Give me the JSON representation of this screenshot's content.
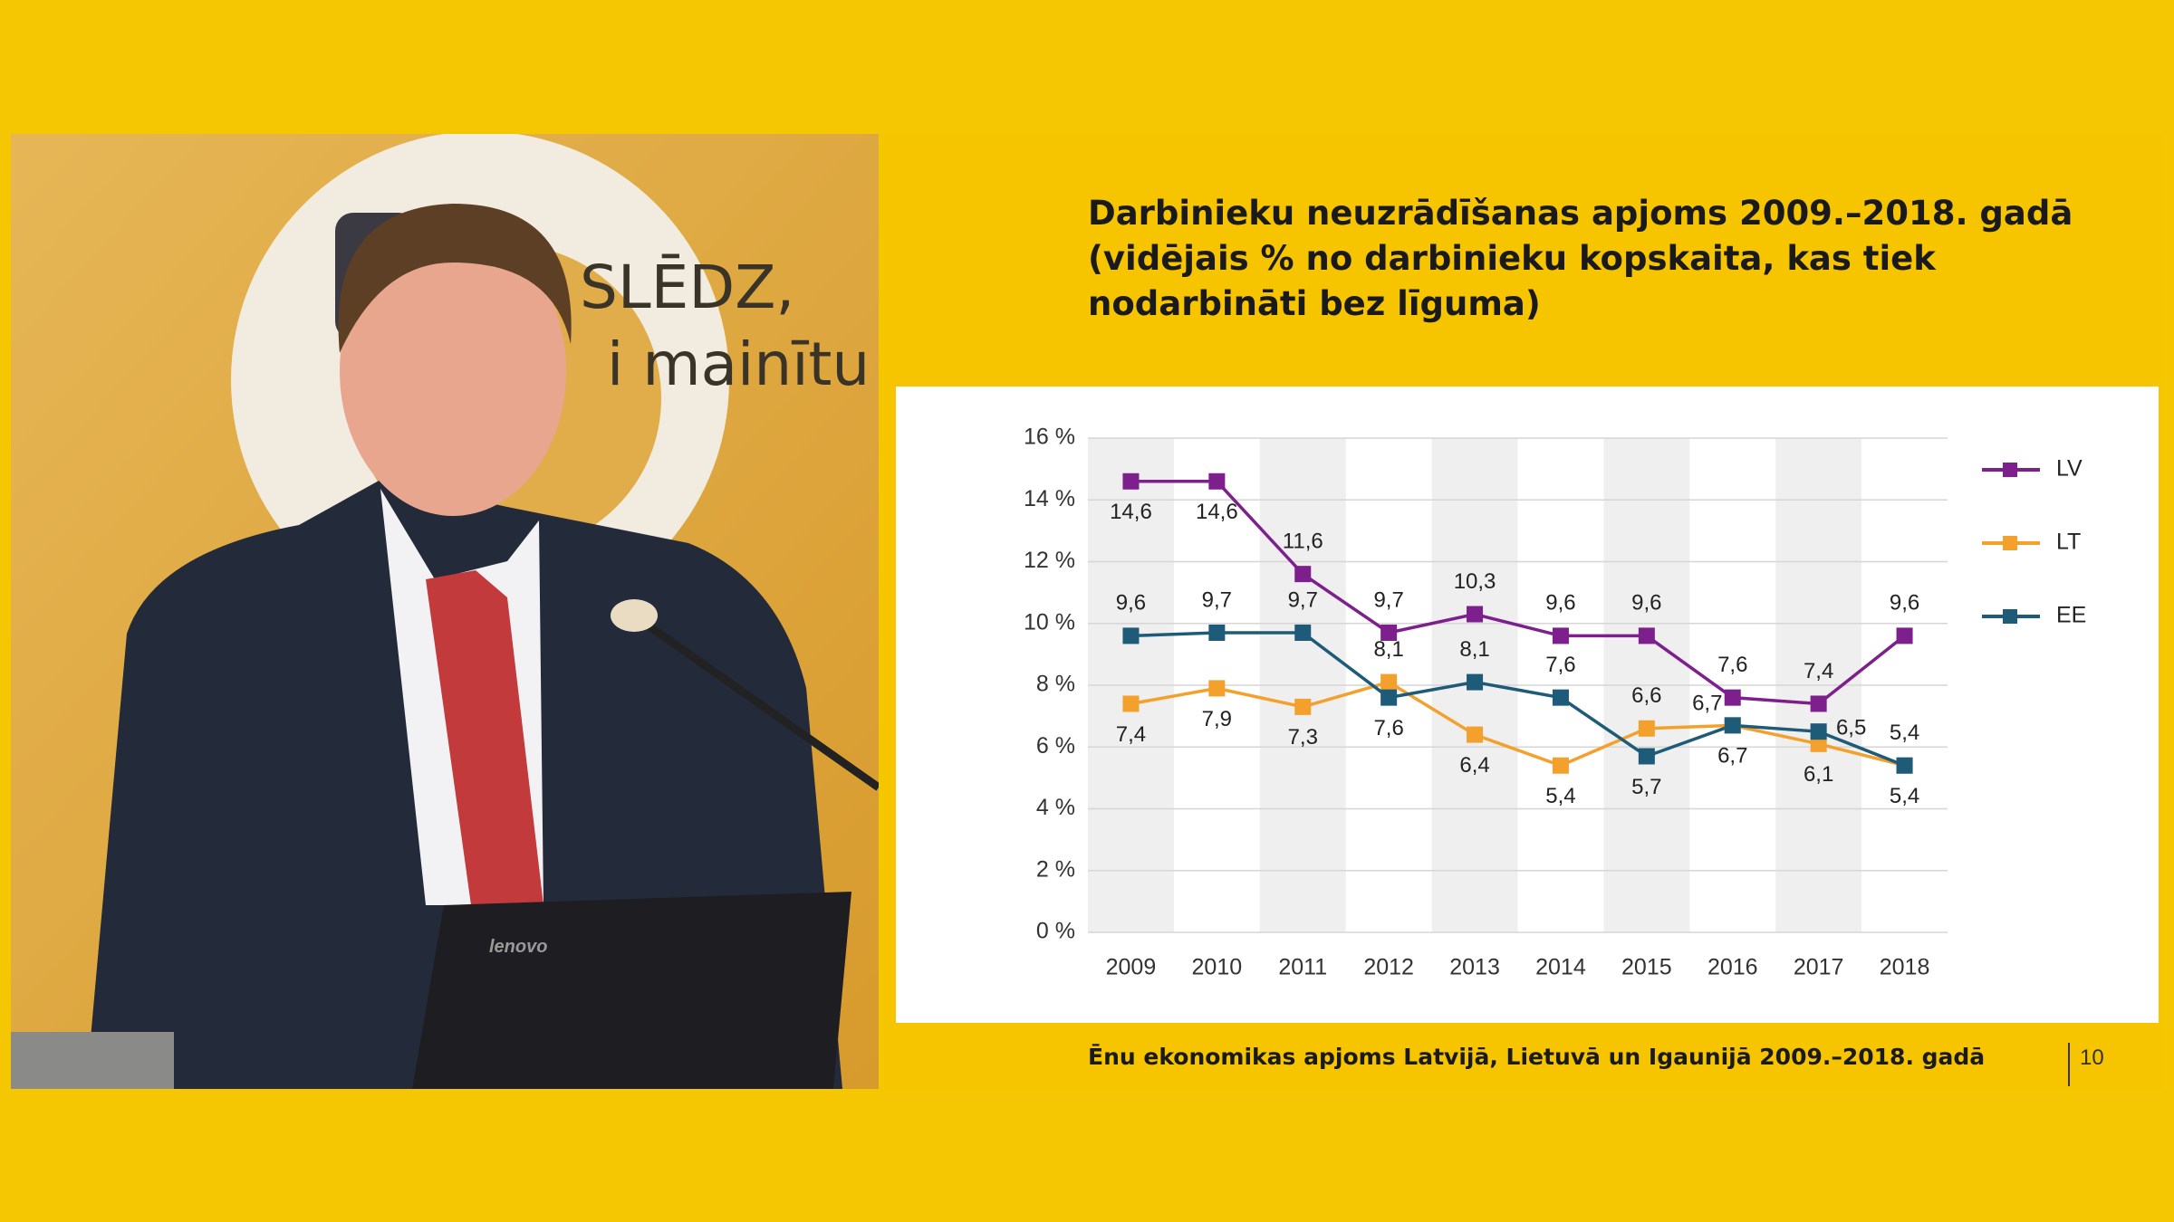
{
  "slide_title": [
    "Darbinieku neuzrādīšanas apjoms 2009.–2018. gadā",
    "(vidējais % no darbinieku kopskaita, kas tiek",
    "nodarbināti bez līguma)"
  ],
  "footer": "Ēnu ekonomikas apjoms  Latvijā, Lietuvā un Igaunijā 2009.–2018. gadā",
  "page_number": "10",
  "backdrop_text": [
    "SLĒDZ,",
    "i mainītu"
  ],
  "laptop_brand": "lenovo",
  "chart_data": {
    "type": "line",
    "categories": [
      "2009",
      "2010",
      "2011",
      "2012",
      "2013",
      "2014",
      "2015",
      "2016",
      "2017",
      "2018"
    ],
    "series": [
      {
        "name": "LV",
        "color": "#7d1f8c",
        "values": [
          14.6,
          14.6,
          11.6,
          9.7,
          10.3,
          9.6,
          9.6,
          7.6,
          7.4,
          9.6
        ],
        "value_labels": [
          "14,6",
          "14,6",
          "11,6",
          "9,7",
          "10,3",
          "9,6",
          "9,6",
          "7,6",
          "7,4",
          "9,6"
        ]
      },
      {
        "name": "LT",
        "color": "#f3a12c",
        "values": [
          7.4,
          7.9,
          7.3,
          8.1,
          6.4,
          5.4,
          6.6,
          6.7,
          6.1,
          5.4
        ],
        "value_labels": [
          "7,4",
          "7,9",
          "7,3",
          "8,1",
          "6,4",
          "5,4",
          "6,6",
          "6,7",
          "6,1",
          "5,4"
        ]
      },
      {
        "name": "EE",
        "color": "#1d5b78",
        "values": [
          9.6,
          9.7,
          9.7,
          7.6,
          8.1,
          7.6,
          5.7,
          6.7,
          6.5,
          5.4
        ],
        "value_labels": [
          "9,6",
          "9,7",
          "9,7",
          "7,6",
          "8,1",
          "7,6",
          "5,7",
          "6,7",
          "6,5",
          "5,4"
        ]
      }
    ],
    "ylim": [
      0,
      16
    ],
    "yticks": [
      {
        "value": 0,
        "label": "0 %"
      },
      {
        "value": 2,
        "label": "2 %"
      },
      {
        "value": 4,
        "label": "4 %"
      },
      {
        "value": 6,
        "label": "6 %"
      },
      {
        "value": 8,
        "label": "8 %"
      },
      {
        "value": 10,
        "label": "10 %"
      },
      {
        "value": 12,
        "label": "12 %"
      },
      {
        "value": 14,
        "label": "14 %"
      },
      {
        "value": 16,
        "label": "16 %"
      }
    ],
    "grid": true,
    "legend": "right"
  }
}
